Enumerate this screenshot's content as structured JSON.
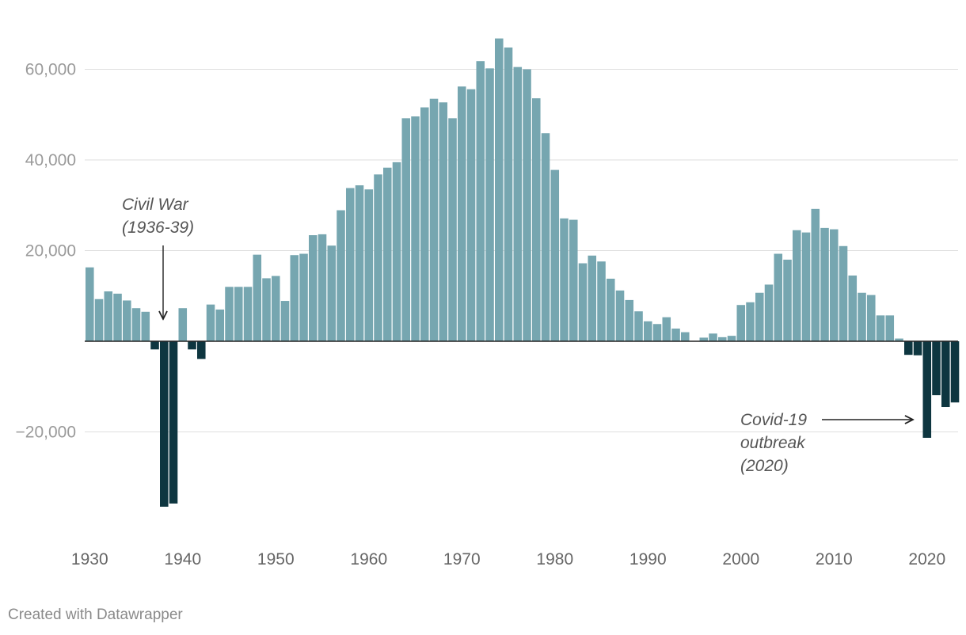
{
  "chart_data": {
    "type": "bar",
    "x_start": 1930,
    "x": [
      1930,
      1931,
      1932,
      1933,
      1934,
      1935,
      1936,
      1937,
      1938,
      1939,
      1940,
      1941,
      1942,
      1943,
      1944,
      1945,
      1946,
      1947,
      1948,
      1949,
      1950,
      1951,
      1952,
      1953,
      1954,
      1955,
      1956,
      1957,
      1958,
      1959,
      1960,
      1961,
      1962,
      1963,
      1964,
      1965,
      1966,
      1967,
      1968,
      1969,
      1970,
      1971,
      1972,
      1973,
      1974,
      1975,
      1976,
      1977,
      1978,
      1979,
      1980,
      1981,
      1982,
      1983,
      1984,
      1985,
      1986,
      1987,
      1988,
      1989,
      1990,
      1991,
      1992,
      1993,
      1994,
      1995,
      1996,
      1997,
      1998,
      1999,
      2000,
      2001,
      2002,
      2003,
      2004,
      2005,
      2006,
      2007,
      2008,
      2009,
      2010,
      2011,
      2012,
      2013,
      2014,
      2015,
      2016,
      2017,
      2018,
      2019,
      2020,
      2021,
      2022,
      2023
    ],
    "values": [
      16300,
      9300,
      11000,
      10500,
      9000,
      7300,
      6500,
      -1800,
      -36500,
      -35800,
      7300,
      -1800,
      -3900,
      8100,
      7000,
      12000,
      12000,
      12000,
      19100,
      13900,
      14400,
      8900,
      19000,
      19300,
      23400,
      23600,
      21100,
      28900,
      33800,
      34400,
      33500,
      36800,
      38300,
      39500,
      49200,
      49600,
      51600,
      53500,
      52700,
      49200,
      56200,
      55600,
      61800,
      60200,
      66800,
      64800,
      60500,
      60000,
      53600,
      45900,
      37800,
      27100,
      26800,
      17200,
      18900,
      17600,
      13800,
      11200,
      9100,
      6600,
      4400,
      3800,
      5300,
      2800,
      2000,
      0,
      800,
      1700,
      900,
      1200,
      8000,
      8600,
      10700,
      12500,
      19300,
      18000,
      24500,
      24000,
      29200,
      25000,
      24700,
      21000,
      14500,
      10700,
      10200,
      5700,
      5700,
      600,
      -3000,
      -3100,
      -21300,
      -11900,
      -14500,
      -13500
    ],
    "ylim": [
      -38000,
      68000
    ],
    "yticks": [
      -20000,
      20000,
      40000,
      60000
    ],
    "ytick_labels": [
      "−20,000",
      "20,000",
      "40,000",
      "60,000"
    ],
    "xticks": [
      1930,
      1940,
      1950,
      1960,
      1970,
      1980,
      1990,
      2000,
      2010,
      2020
    ],
    "xtick_labels": [
      "1930",
      "1940",
      "1950",
      "1960",
      "1970",
      "1980",
      "1990",
      "2000",
      "2010",
      "2020"
    ],
    "positive_color": "#76a6b0",
    "negative_color": "#0e3640",
    "grid": true,
    "annotations": [
      {
        "lines": [
          "Civil War",
          "(1936-39)"
        ],
        "year": 1938,
        "arrow": "down"
      },
      {
        "lines": [
          "Covid-19",
          "outbreak",
          "(2020)"
        ],
        "year": 2020,
        "arrow": "right"
      }
    ],
    "credit": "Created with Datawrapper"
  }
}
